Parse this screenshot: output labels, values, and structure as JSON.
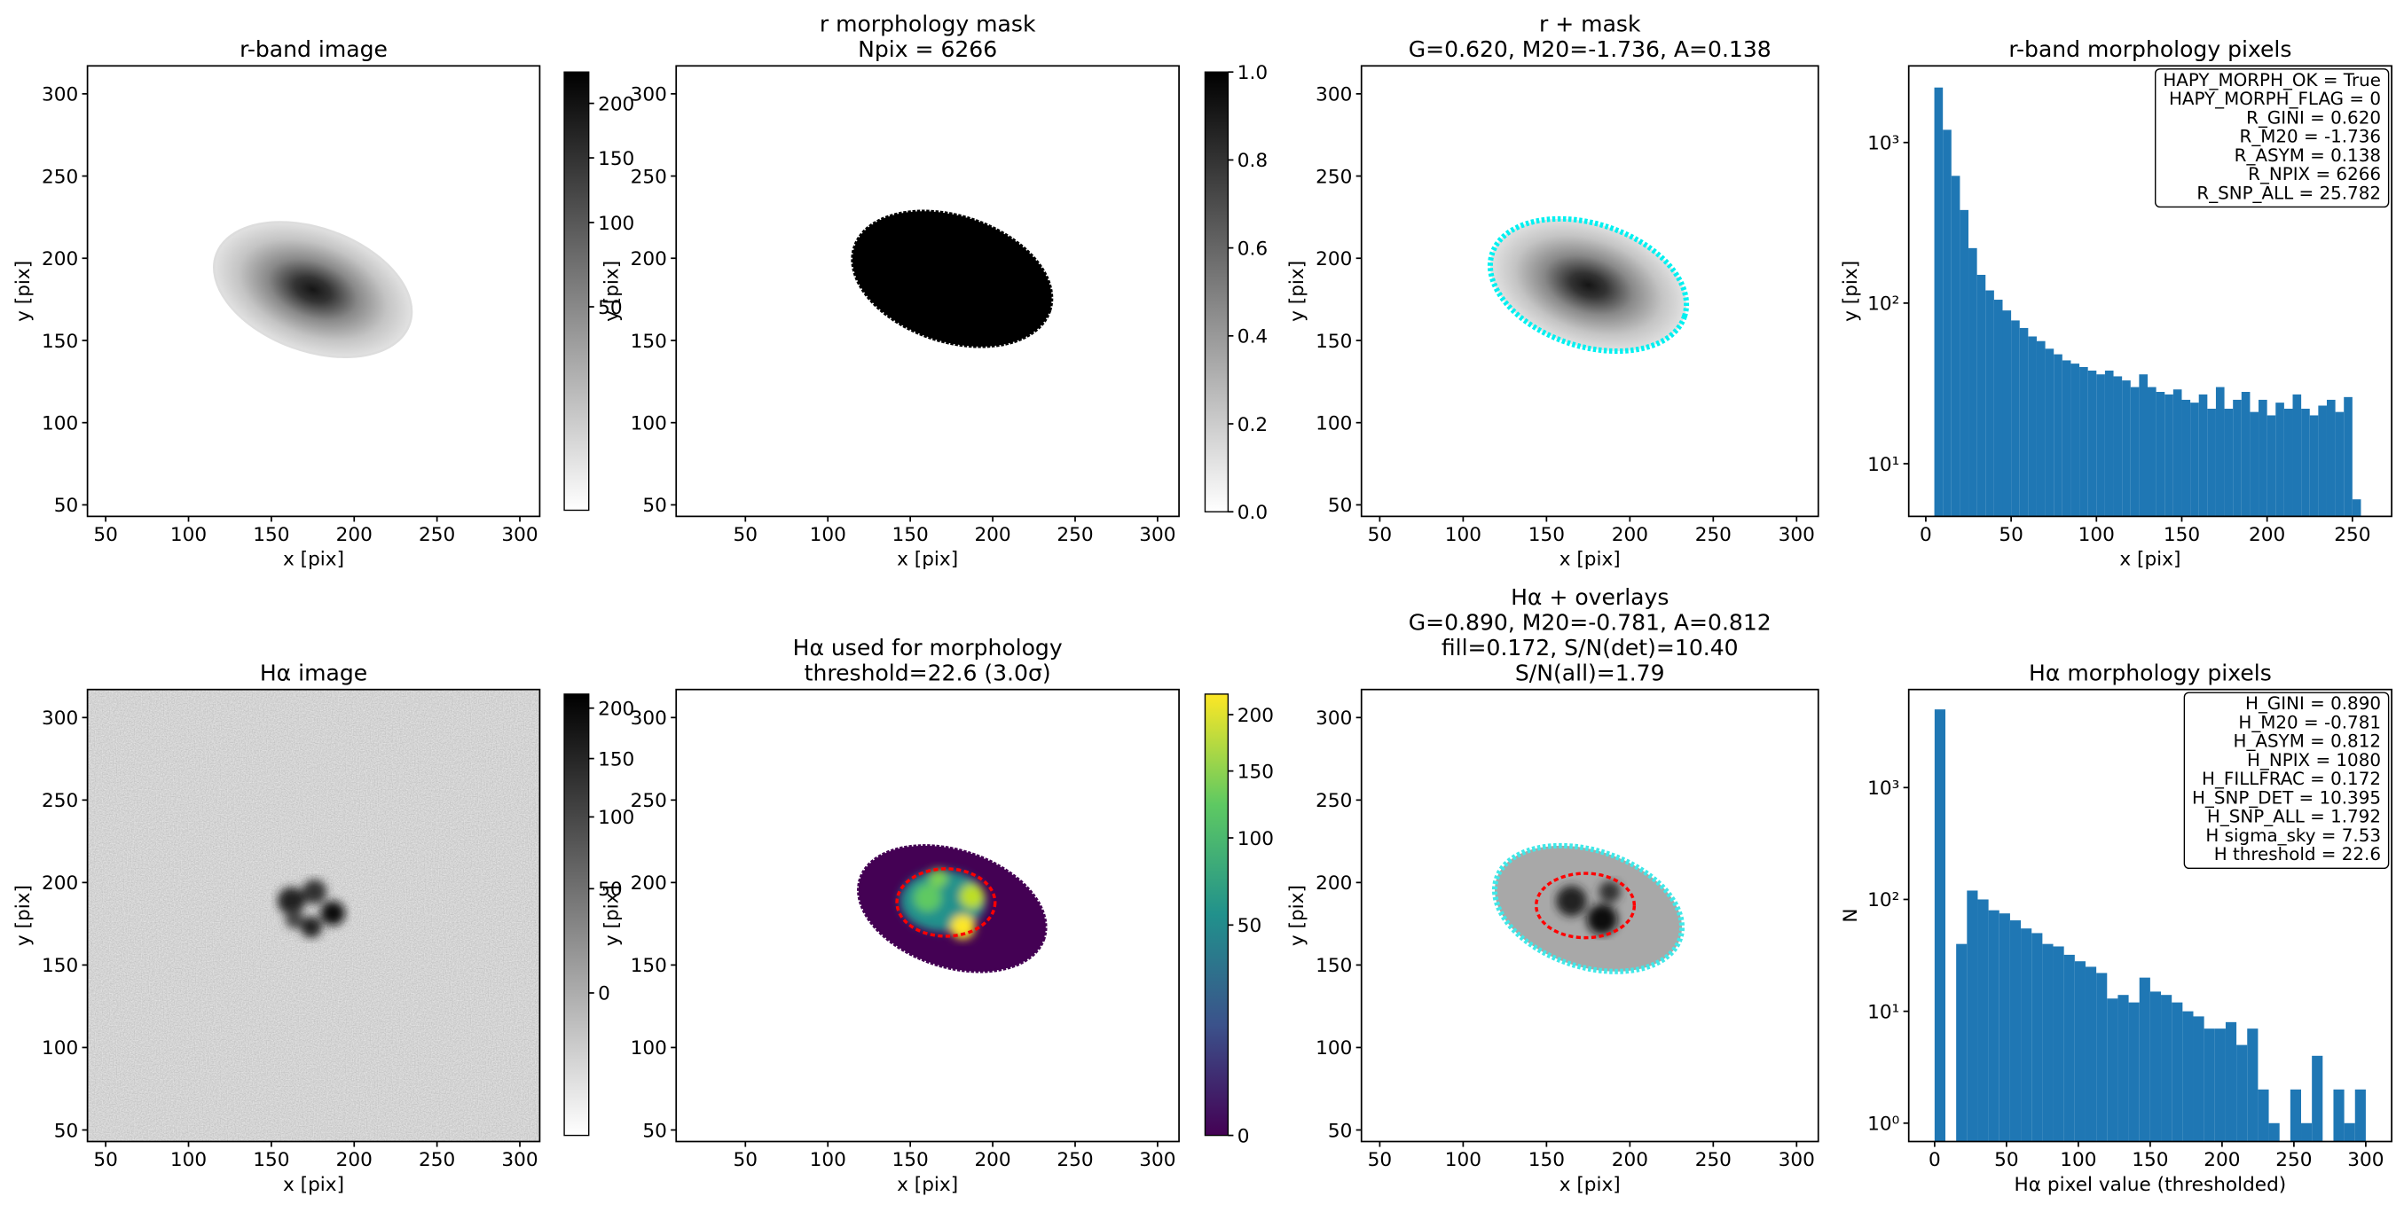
{
  "chart_data": [
    {
      "type": "image",
      "title": "r-band image",
      "xlabel": "x [pix]",
      "ylabel": "y [pix]",
      "xlim": [
        39,
        312
      ],
      "ylim": [
        43,
        317
      ],
      "xticks": [
        50,
        100,
        150,
        200,
        250,
        300
      ],
      "yticks": [
        50,
        100,
        150,
        200,
        250,
        300
      ],
      "colorbar": {
        "lim": [
          0,
          232
        ],
        "ticks": [
          50,
          100,
          150,
          200
        ],
        "scale": "sqrt",
        "cmap": "gray_r"
      }
    },
    {
      "type": "image",
      "title": [
        "r morphology mask",
        "Npix = 6266"
      ],
      "xlabel": "x [pix]",
      "ylabel": "y [pix]",
      "xlim": [
        8,
        313
      ],
      "ylim": [
        43,
        317
      ],
      "xticks": [
        50,
        100,
        150,
        200,
        250,
        300
      ],
      "yticks": [
        50,
        100,
        150,
        200,
        250,
        300
      ],
      "colorbar": {
        "lim": [
          0,
          1
        ],
        "ticks": [
          {
            "value": 0,
            "label": "0.0"
          },
          0.2,
          0.4,
          0.6,
          0.8,
          {
            "value": 1,
            "label": "1.0"
          }
        ],
        "scale": "linear",
        "cmap": "gray_r"
      }
    },
    {
      "type": "image",
      "title": [
        "r + mask",
        "G=0.620, M20=-1.736, A=0.138"
      ],
      "xlabel": "x [pix]",
      "ylabel": "y [pix]",
      "xlim": [
        39,
        313
      ],
      "ylim": [
        43,
        317
      ],
      "xticks": [
        50,
        100,
        150,
        200,
        250,
        300
      ],
      "yticks": [
        50,
        100,
        150,
        200,
        250,
        300
      ]
    },
    {
      "type": "histogram",
      "title": "r-band morphology pixels",
      "xlabel": "x [pix]",
      "ylabel": "y [pix]",
      "bins": [
        5,
        10,
        15,
        20,
        25,
        30,
        35,
        40,
        45,
        50,
        55,
        60,
        65,
        70,
        75,
        80,
        85,
        90,
        95,
        100,
        105,
        110,
        115,
        120,
        125,
        130,
        135,
        140,
        145,
        150,
        155,
        160,
        165,
        170,
        175,
        180,
        185,
        190,
        195,
        200,
        205,
        210,
        215,
        220,
        225,
        230,
        235,
        240,
        245,
        250,
        255
      ],
      "values": [
        2200,
        1200,
        620,
        380,
        220,
        150,
        120,
        105,
        90,
        78,
        70,
        62,
        58,
        52,
        48,
        44,
        42,
        40,
        38,
        36,
        38,
        35,
        33,
        30,
        36,
        30,
        28,
        27,
        29,
        25,
        24,
        27,
        22,
        30,
        22,
        25,
        28,
        21,
        25,
        20,
        24,
        22,
        27,
        22,
        20,
        23,
        25,
        21,
        26,
        6
      ],
      "color": "#1f77b4",
      "xlim": [
        -10,
        273
      ],
      "xticks": [
        0,
        50,
        100,
        150,
        200,
        250
      ],
      "yscale": "log",
      "ylim": [
        4.7,
        3000
      ],
      "yticks": [
        {
          "value": 10,
          "label": "10¹"
        },
        {
          "value": 100,
          "label": "10²"
        },
        {
          "value": 1000,
          "label": "10³"
        }
      ],
      "annotation": [
        "HAPY_MORPH_OK = True",
        "HAPY_MORPH_FLAG = 0",
        "R_GINI = 0.620",
        "R_M20 = -1.736",
        "R_ASYM = 0.138",
        "R_NPIX = 6266",
        "R_SNP_ALL = 25.782"
      ]
    },
    {
      "type": "image",
      "title": "Hα image",
      "xlabel": "x [pix]",
      "ylabel": "y [pix]",
      "xlim": [
        39,
        312
      ],
      "ylim": [
        43,
        317
      ],
      "xticks": [
        50,
        100,
        150,
        200,
        250,
        300
      ],
      "yticks": [
        50,
        100,
        150,
        200,
        250,
        300
      ],
      "colorbar": {
        "lim": [
          -25,
          215
        ],
        "ticks": [
          0,
          50,
          100,
          150,
          200
        ],
        "scale": "sqrt",
        "cmap": "gray_r"
      }
    },
    {
      "type": "image",
      "title": [
        "Hα used for morphology",
        "threshold=22.6 (3.0σ)"
      ],
      "xlabel": "x [pix]",
      "ylabel": "y [pix]",
      "xlim": [
        8,
        313
      ],
      "ylim": [
        43,
        317
      ],
      "xticks": [
        50,
        100,
        150,
        200,
        250,
        300
      ],
      "yticks": [
        50,
        100,
        150,
        200,
        250,
        300
      ],
      "colorbar": {
        "lim": [
          0,
          220
        ],
        "ticks": [
          0,
          50,
          100,
          150,
          200
        ],
        "scale": "sqrt",
        "cmap": "viridis"
      }
    },
    {
      "type": "image",
      "title": [
        "Hα + overlays",
        "G=0.890, M20=-0.781, A=0.812",
        "fill=0.172, S/N(det)=10.40",
        "S/N(all)=1.79"
      ],
      "xlabel": "x [pix]",
      "ylabel": "y [pix]",
      "xlim": [
        39,
        313
      ],
      "ylim": [
        43,
        317
      ],
      "xticks": [
        50,
        100,
        150,
        200,
        250,
        300
      ],
      "yticks": [
        50,
        100,
        150,
        200,
        250,
        300
      ]
    },
    {
      "type": "histogram",
      "title": "Hα morphology pixels",
      "xlabel": "Hα pixel value (thresholded)",
      "ylabel": "N",
      "bins": [
        0,
        7.5,
        15,
        22.5,
        30,
        37.5,
        45,
        52.5,
        60,
        67.5,
        75,
        82.5,
        90,
        97.5,
        105,
        112.5,
        120,
        127.5,
        135,
        142.5,
        150,
        157.5,
        165,
        172.5,
        180,
        187.5,
        195,
        202.5,
        210,
        217.5,
        225,
        232.5,
        240,
        247.5,
        255,
        262.5,
        270,
        277.5,
        285,
        292.5,
        300
      ],
      "values": [
        5000,
        0,
        40,
        120,
        100,
        80,
        75,
        65,
        55,
        50,
        40,
        38,
        32,
        28,
        25,
        22,
        13,
        14,
        12,
        20,
        15,
        14,
        12,
        10,
        9,
        7,
        7,
        8,
        5,
        7,
        2,
        1,
        0,
        2,
        1,
        4,
        0,
        2,
        1,
        2
      ],
      "color": "#1f77b4",
      "xlim": [
        -18,
        318
      ],
      "xticks": [
        0,
        50,
        100,
        150,
        200,
        250,
        300
      ],
      "yscale": "log",
      "ylim": [
        0.685,
        7530
      ],
      "yticks": [
        {
          "value": 1,
          "label": "10⁰"
        },
        {
          "value": 10,
          "label": "10¹"
        },
        {
          "value": 100,
          "label": "10²"
        },
        {
          "value": 1000,
          "label": "10³"
        }
      ],
      "annotation": [
        "H_GINI = 0.890",
        "H_M20 = -0.781",
        "H_ASYM = 0.812",
        "H_NPIX = 1080",
        "H_FILLFRAC = 0.172",
        "H_SNP_DET = 10.395",
        "H_SNP_ALL = 1.792",
        "H sigma_sky = 7.53",
        "H threshold = 22.6"
      ]
    }
  ]
}
